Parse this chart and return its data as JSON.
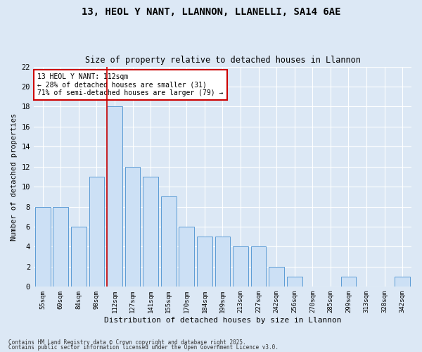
{
  "title1": "13, HEOL Y NANT, LLANNON, LLANELLI, SA14 6AE",
  "title2": "Size of property relative to detached houses in Llannon",
  "xlabel": "Distribution of detached houses by size in Llannon",
  "ylabel": "Number of detached properties",
  "categories": [
    "55sqm",
    "69sqm",
    "84sqm",
    "98sqm",
    "112sqm",
    "127sqm",
    "141sqm",
    "155sqm",
    "170sqm",
    "184sqm",
    "199sqm",
    "213sqm",
    "227sqm",
    "242sqm",
    "256sqm",
    "270sqm",
    "285sqm",
    "299sqm",
    "313sqm",
    "328sqm",
    "342sqm"
  ],
  "values": [
    8,
    8,
    6,
    11,
    18,
    12,
    11,
    9,
    6,
    5,
    5,
    4,
    4,
    2,
    1,
    0,
    0,
    1,
    0,
    0,
    1
  ],
  "highlight_index": 4,
  "bar_color": "#cce0f5",
  "bar_edge_color": "#5b9bd5",
  "highlight_line_color": "#cc0000",
  "annotation_text": "13 HEOL Y NANT: 112sqm\n← 28% of detached houses are smaller (31)\n71% of semi-detached houses are larger (79) →",
  "annotation_box_color": "#ffffff",
  "annotation_box_edge": "#cc0000",
  "ylim": [
    0,
    22
  ],
  "yticks": [
    0,
    2,
    4,
    6,
    8,
    10,
    12,
    14,
    16,
    18,
    20,
    22
  ],
  "background_color": "#dce8f5",
  "grid_color": "#ffffff",
  "footer1": "Contains HM Land Registry data © Crown copyright and database right 2025.",
  "footer2": "Contains public sector information licensed under the Open Government Licence v3.0."
}
